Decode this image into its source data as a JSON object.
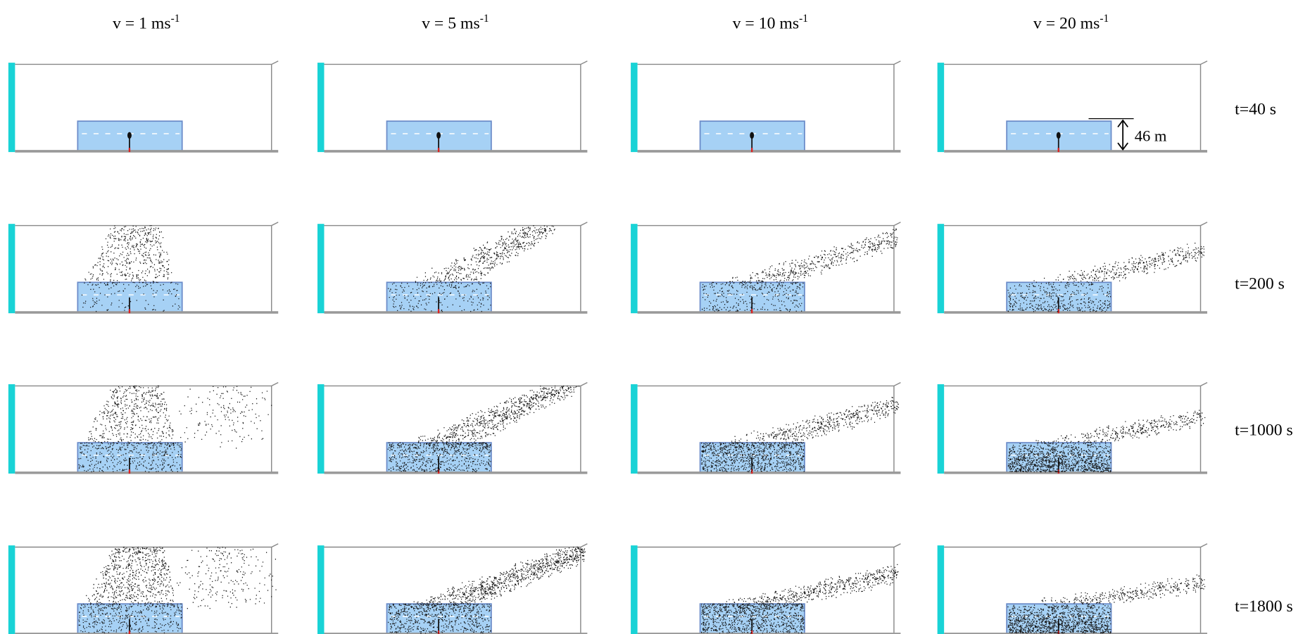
{
  "columns": [
    {
      "label": "v = 1 ms",
      "superscript": "-1"
    },
    {
      "label": "v = 5 ms",
      "superscript": "-1"
    },
    {
      "label": "v = 10 ms",
      "superscript": "-1"
    },
    {
      "label": "v = 20 ms",
      "superscript": "-1"
    }
  ],
  "rows": [
    {
      "label": "t=40 s"
    },
    {
      "label": "t=200 s"
    },
    {
      "label": "t=1000 s"
    },
    {
      "label": "t=1800 s"
    }
  ],
  "annotation": {
    "label": "46 m"
  }
}
